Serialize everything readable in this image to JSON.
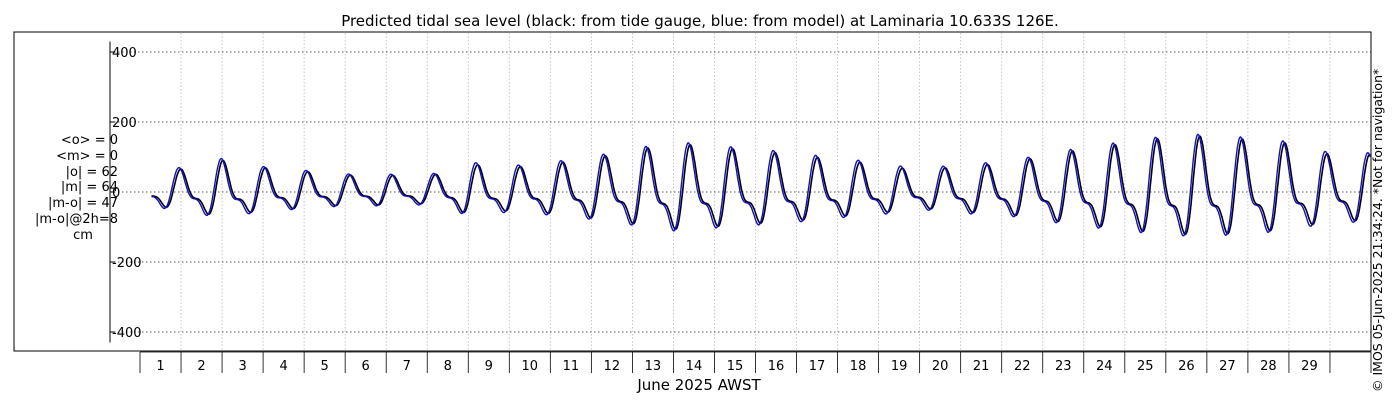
{
  "chart_data": {
    "type": "line",
    "title": "Predicted tidal sea level (black: from tide gauge, blue: from model) at Laminaria 10.633S 126E.",
    "xlabel": "June 2025 AWST",
    "ylabel": "",
    "xlim": [
      0,
      30
    ],
    "ylim": [
      -430,
      430
    ],
    "yticks": [
      -400,
      -200,
      0,
      200,
      400
    ],
    "ytick_labels": [
      "-400",
      "-200",
      "0",
      "200",
      "400"
    ],
    "xtick_labels": [
      "1",
      "2",
      "3",
      "4",
      "5",
      "6",
      "7",
      "8",
      "9",
      "10",
      "11",
      "12",
      "13",
      "14",
      "15",
      "16",
      "17",
      "18",
      "19",
      "20",
      "21",
      "22",
      "23",
      "24",
      "25",
      "26",
      "27",
      "28",
      "29"
    ],
    "grid": true,
    "series": [
      {
        "name": "tide gauge",
        "color": "#000000",
        "amplitude_days": [
          0.3,
          2,
          3,
          4,
          5,
          6,
          7,
          8,
          9,
          10,
          11,
          12,
          13,
          14,
          15,
          16,
          17,
          18,
          19,
          20,
          21,
          22,
          23,
          24,
          25,
          26,
          27,
          28,
          29,
          30
        ],
        "amplitude_cm": [
          45,
          85,
          65,
          55,
          45,
          45,
          40,
          75,
          65,
          75,
          90,
          110,
          130,
          120,
          110,
          100,
          85,
          75,
          55,
          70,
          75,
          95,
          115,
          130,
          145,
          150,
          140,
          130,
          100,
          100
        ]
      },
      {
        "name": "model",
        "color": "#1010cc",
        "amplitude_days": [
          0.3,
          2,
          3,
          4,
          5,
          6,
          7,
          8,
          9,
          10,
          11,
          12,
          13,
          14,
          15,
          16,
          17,
          18,
          19,
          20,
          21,
          22,
          23,
          24,
          25,
          26,
          27,
          28,
          29,
          30
        ],
        "amplitude_cm": [
          50,
          90,
          68,
          58,
          48,
          48,
          44,
          80,
          70,
          80,
          95,
          115,
          135,
          125,
          115,
          105,
          90,
          80,
          60,
          75,
          80,
          100,
          120,
          135,
          150,
          155,
          145,
          135,
          105,
          105
        ]
      }
    ]
  },
  "stats": {
    "mean_obs": "<o> = 0",
    "mean_model": "<m> = 0",
    "abs_obs": "|o| = 62",
    "abs_model": "|m| = 64",
    "abs_diff": "|m-o| = 47",
    "abs_diff_2h": "|m-o|@2h=8",
    "unit": "cm"
  },
  "vertical_note": "© IMOS 05-Jun-2025 21:34:24. *Not for navigation*"
}
